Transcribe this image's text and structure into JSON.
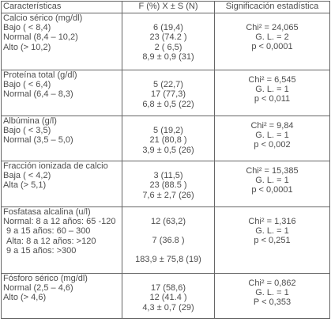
{
  "header": {
    "col1": "Características",
    "col2": "F (%) X ± S (N)",
    "col3": "Significación estadística"
  },
  "sections": [
    {
      "title": "Calcio sérico (mg/dl)",
      "rows": [
        {
          "label": "Bajo ( < 8,4)",
          "value": "6 (19,4)"
        },
        {
          "label": "Normal (8,4 – 10,2)",
          "value": "23 (74.2 )"
        },
        {
          "label": "Alto (> 10,2)",
          "value": "2 ( 6,5)"
        }
      ],
      "summary": "8,9 ± 0,9 (31)",
      "stats": [
        "Chi² = 24,065",
        "G. L. = 2",
        "p < 0,0001"
      ]
    },
    {
      "title": "Proteína total (g/dl)",
      "rows": [
        {
          "label": "Bajo ( < 6,4)",
          "value": "5 (22,7)"
        },
        {
          "label": "Normal (6,4 – 8,3)",
          "value": "17 (77,3)"
        }
      ],
      "summary": "6,8 ± 0,5 (22)",
      "stats": [
        "Chi² = 6,545",
        "G. L. = 1",
        "p < 0,011"
      ]
    },
    {
      "title": "Albúmina (g/l)",
      "rows": [
        {
          "label": "Bajo ( < 3,5)",
          "value": "5 (19,2)"
        },
        {
          "label": "Normal (3,5 – 5,0)",
          "value": "21 (80,8 )"
        }
      ],
      "summary": "3,9 ± 0,5 (26)",
      "stats": [
        "Chi² = 9,84",
        "G. L. = 1",
        "p < 0,002"
      ]
    },
    {
      "title": "Fracción ionizada de calcio",
      "rows": [
        {
          "label": "Baja ( < 4,2)",
          "value": "3 (11,5)"
        },
        {
          "label": "Alta (> 5,1)",
          "value": "23 (88.5 )"
        }
      ],
      "summary": "7,6 ± 2,7 (26)",
      "stats": [
        "Chi² = 15,385",
        "G. L. = 1",
        "p < 0,0001"
      ]
    },
    {
      "title": "Fosfatasa alcalina (u/l)",
      "lines": [
        "Normal: 8 a 12 años: 65 -120",
        "9 a 15 años: 60 – 300",
        "Alta: 8 a 12 años: >120",
        "9 a 15 años: >300"
      ],
      "values": [
        "12 (63,2)",
        "7 (36.8 )"
      ],
      "summary": "183,9 ± 75,8 (19)",
      "stats": [
        "Chi² = 1,316",
        "G. L. = 1",
        "p < 0,251"
      ]
    },
    {
      "title": "Fósforo sérico (mg/dl)",
      "rows": [
        {
          "label": "Normal (2,5 – 4,6)",
          "value": "17 (58,6)"
        },
        {
          "label": "Alto (> 4,6)",
          "value": "12 (41.4 )"
        }
      ],
      "summary": "4,3 ± 0,7 (29)",
      "stats": [
        "Chi² = 0,862",
        "G. L. = 1",
        "P < 0,353"
      ]
    }
  ]
}
